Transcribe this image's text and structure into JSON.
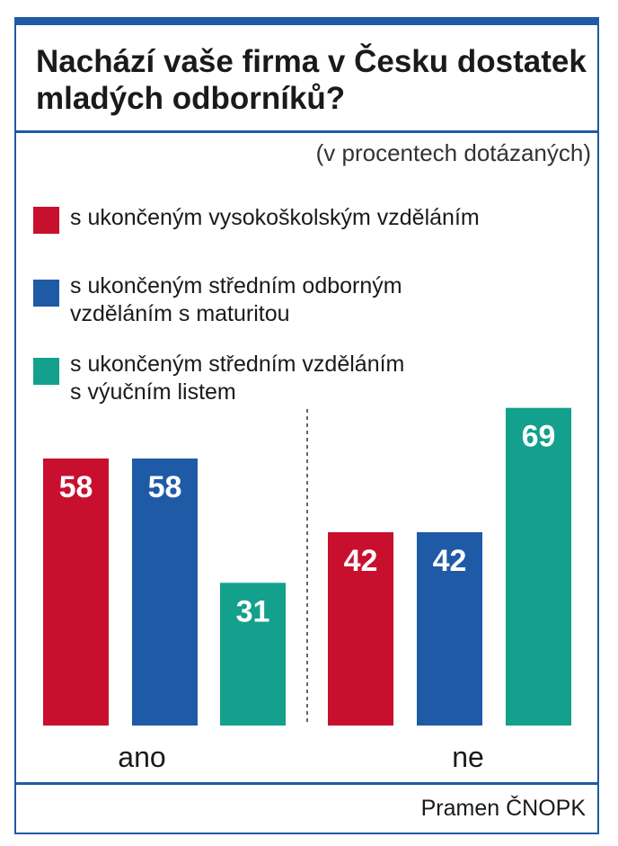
{
  "chart_data": {
    "type": "bar",
    "title": "Nachází vaše firma v Česku dostatek mladých odborníků?",
    "subtitle": "(v procentech dotázaných)",
    "categories": [
      "ano",
      "ne"
    ],
    "series": [
      {
        "name": "s ukončeným vysokoškolským vzděláním",
        "values": [
          58,
          42
        ],
        "color": "#c8102e"
      },
      {
        "name": "s ukončeným středním odborným vzděláním s maturitou",
        "values": [
          58,
          42
        ],
        "color": "#1f5aa6"
      },
      {
        "name": "s ukončeným středním vzděláním s výučním listem",
        "values": [
          31,
          69
        ],
        "color": "#13a08c"
      }
    ],
    "ylim": [
      0,
      100
    ],
    "grid": false,
    "legend_position": "top",
    "source": "Pramen ČNOPK"
  },
  "legend": [
    {
      "label": "s ukončeným vysokoškolským vzděláním"
    },
    {
      "label": "s ukončeným středním odborným\nvzděláním s maturitou"
    },
    {
      "label": "s ukončeným středním vzděláním\ns výučním listem"
    }
  ]
}
